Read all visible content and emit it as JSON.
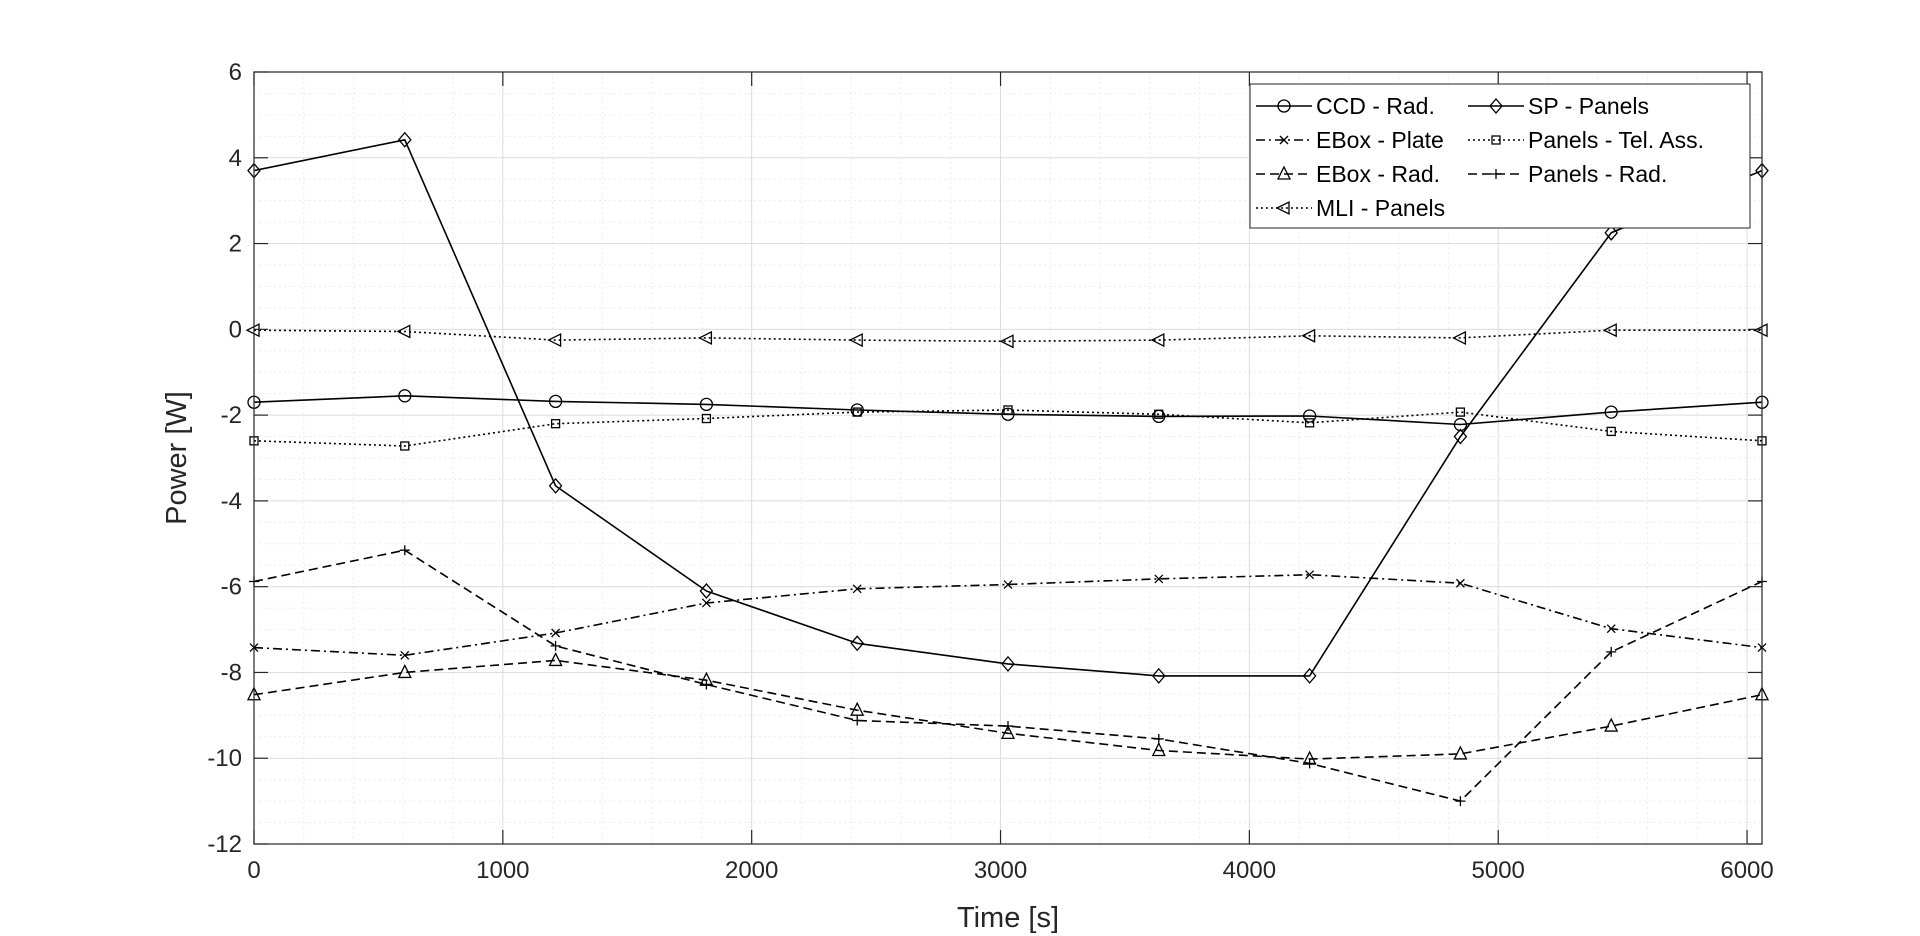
{
  "chart_data": {
    "type": "line",
    "title": "",
    "xlabel": "Time [s]",
    "ylabel": "Power [W]",
    "xlim": [
      0,
      6060
    ],
    "ylim": [
      -12,
      6
    ],
    "xticks": [
      0,
      1000,
      2000,
      3000,
      4000,
      5000,
      6000
    ],
    "yticks": [
      -12,
      -10,
      -8,
      -6,
      -4,
      -2,
      0,
      2,
      4,
      6
    ],
    "grid": true,
    "minor_grid": true,
    "legend_position": "top-right",
    "legend_columns": 2,
    "x": [
      0,
      606,
      1212,
      1818,
      2424,
      3030,
      3636,
      4242,
      4848,
      5454,
      6060
    ],
    "series": [
      {
        "name": "CCD - Rad.",
        "marker": "circle",
        "dash": "solid",
        "values": [
          -1.7,
          -1.55,
          -1.68,
          -1.75,
          -1.88,
          -1.98,
          -2.03,
          -2.02,
          -2.22,
          -1.93,
          -1.7
        ]
      },
      {
        "name": "SP - Panels",
        "marker": "diamond",
        "dash": "solid",
        "values": [
          3.7,
          4.42,
          -3.65,
          -6.1,
          -7.32,
          -7.8,
          -8.08,
          -8.08,
          -2.5,
          2.25,
          3.7
        ]
      },
      {
        "name": "EBox - Plate",
        "marker": "x",
        "dash": "dashdot",
        "values": [
          -7.42,
          -7.6,
          -7.08,
          -6.38,
          -6.05,
          -5.95,
          -5.82,
          -5.72,
          -5.92,
          -6.98,
          -7.42
        ]
      },
      {
        "name": "Panels - Tel. Ass.",
        "marker": "square",
        "dash": "dotted",
        "values": [
          -2.6,
          -2.72,
          -2.2,
          -2.08,
          -1.93,
          -1.88,
          -1.98,
          -2.18,
          -1.93,
          -2.38,
          -2.6
        ]
      },
      {
        "name": "EBox - Rad.",
        "marker": "triangle-up",
        "dash": "dashed",
        "values": [
          -8.52,
          -8.0,
          -7.72,
          -8.18,
          -8.88,
          -9.42,
          -9.82,
          -10.02,
          -9.9,
          -9.25,
          -8.52
        ]
      },
      {
        "name": "Panels - Rad.",
        "marker": "plus",
        "dash": "dashed",
        "values": [
          -5.88,
          -5.15,
          -7.38,
          -8.28,
          -9.12,
          -9.25,
          -9.55,
          -10.12,
          -11.0,
          -7.52,
          -5.88
        ]
      },
      {
        "name": "MLI - Panels",
        "marker": "triangle-left",
        "dash": "dotted",
        "values": [
          -0.02,
          -0.05,
          -0.25,
          -0.2,
          -0.25,
          -0.28,
          -0.25,
          -0.15,
          -0.2,
          -0.02,
          -0.02
        ]
      }
    ]
  }
}
